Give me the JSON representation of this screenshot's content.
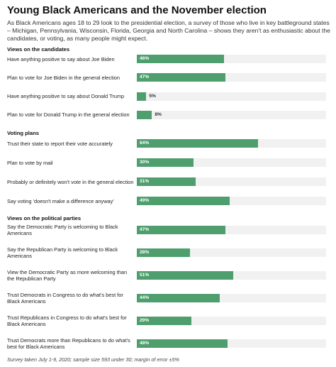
{
  "chart_data": {
    "type": "bar",
    "title": "Young Black Americans and the November election",
    "subtitle": "As Black Americans ages 18 to 29 look to the presidential election, a survey of those who live in key battleground states – Michigan, Pennsylvania, Wisconsin, Florida, Georgia and North Carolina – shows they aren't as enthusiastic about the candidates, or voting, as many people might expect.",
    "xlim": [
      0,
      100
    ],
    "color": "#4f9f6e",
    "groups": [
      {
        "name": "Views on the candidates",
        "categories": [
          "Have anything positive to say about Joe Biden",
          "Plan to vote for Joe Biden in the general election",
          "Have anything positive to say about Donald Trump",
          "Plan to vote for Donald Trump in the general election"
        ],
        "values": [
          46,
          47,
          5,
          8
        ],
        "value_labels": [
          "46%",
          "47%",
          "5%",
          "8%"
        ]
      },
      {
        "name": "Voting plans",
        "categories": [
          "Trust their state to report their vote accurately",
          "Plan to vote by mail",
          "Probably or definitely won't vote in the general election",
          "Say voting 'doesn't make a difference anyway'"
        ],
        "values": [
          64,
          30,
          31,
          49
        ],
        "value_labels": [
          "64%",
          "30%",
          "31%",
          "49%"
        ]
      },
      {
        "name": "Views on the political parties",
        "categories": [
          "Say the Democratic Party is welcoming to Black Americans",
          "Say the Republican Party is welcoming to Black Americans",
          "View the Democratic Party as more welcoming than the Republican Party",
          "Trust Democrats in Congress to do what's best for Black Americans",
          "Trust Republicans in Congress to do what's best for Black Americans",
          "Trust Democrats more than Republicans to do what's best for Black Americans"
        ],
        "values": [
          47,
          28,
          51,
          44,
          29,
          48
        ],
        "value_labels": [
          "47%",
          "28%",
          "51%",
          "44%",
          "29%",
          "48%"
        ]
      }
    ],
    "note": "Survey taken July 1-9, 2020; sample size 593 under 30; margin of error ±5%"
  }
}
